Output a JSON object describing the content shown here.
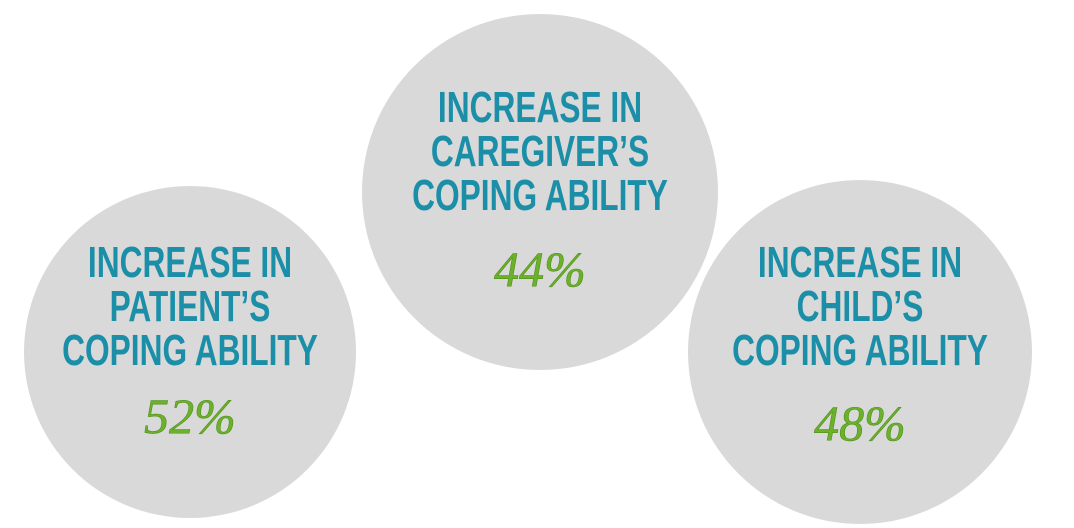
{
  "items": [
    {
      "lines": [
        "INCREASE IN",
        "PATIENT’S",
        "COPING ABILITY"
      ],
      "value": "52%"
    },
    {
      "lines": [
        "INCREASE IN",
        "CAREGIVER’S",
        "COPING ABILITY"
      ],
      "value": "44%"
    },
    {
      "lines": [
        "INCREASE IN",
        "CHILD’S",
        "COPING ABILITY"
      ],
      "value": "48%"
    }
  ]
}
